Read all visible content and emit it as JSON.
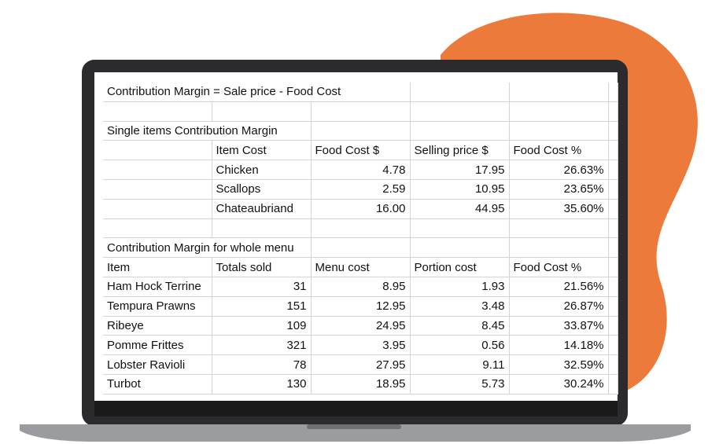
{
  "sheet": {
    "formula": "Contribution Margin = Sale price - Food Cost",
    "single_items": {
      "title": "Single items Contribution Margin",
      "header": [
        "Item Cost",
        "Food Cost $",
        "Selling price $",
        "Food Cost %"
      ],
      "rows": [
        [
          "Chicken",
          "4.78",
          "17.95",
          "26.63%"
        ],
        [
          "Scallops",
          "2.59",
          "10.95",
          "23.65%"
        ],
        [
          "Chateaubriand",
          "16.00",
          "44.95",
          "35.60%"
        ]
      ]
    },
    "whole_menu": {
      "title": "Contribution Margin for whole menu",
      "header": [
        "Item",
        "Totals sold",
        "Menu cost",
        "Portion cost",
        "Food Cost %"
      ],
      "rows": [
        [
          "Ham Hock Terrine",
          "31",
          "8.95",
          "1.93",
          "21.56%"
        ],
        [
          "Tempura Prawns",
          "151",
          "12.95",
          "3.48",
          "26.87%"
        ],
        [
          "Ribeye",
          "109",
          "24.95",
          "8.45",
          "33.87%"
        ],
        [
          "Pomme Frittes",
          "321",
          "3.95",
          "0.56",
          "14.18%"
        ],
        [
          "Lobster Ravioli",
          "78",
          "27.95",
          "9.11",
          "32.59%"
        ],
        [
          "Turbot",
          "130",
          "18.95",
          "5.73",
          "30.24%"
        ]
      ]
    }
  }
}
